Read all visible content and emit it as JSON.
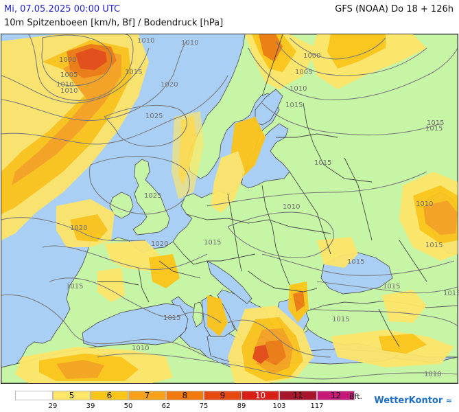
{
  "header": {
    "date": "Mi, 07.05.2025 00:00 UTC",
    "model": "GFS (NOAA) Do 18 + 126h",
    "subtitle": "10m Spitzenboeen [km/h, Bf] / Bodendruck [hPa]"
  },
  "colors": {
    "sea": "#a9cff5",
    "land": "#c6f5a6",
    "bft5": "#fde56a",
    "bft6": "#fdc419",
    "bft7": "#f6a11e",
    "bft8": "#ee7a10",
    "bft9": "#e64a12",
    "bft10": "#d92017",
    "bft11": "#a8162d",
    "bft12": "#c61a7a"
  },
  "isobar_labels": [
    "1010",
    "1010",
    "1000",
    "1000",
    "1005",
    "1005",
    "1010",
    "1015",
    "1020",
    "1010",
    "1025",
    "1015",
    "1015",
    "1025",
    "1020",
    "1020",
    "1010",
    "1015",
    "1015",
    "1015",
    "1015",
    "1015",
    "1010",
    "1015",
    "1010",
    "1015",
    "1010",
    "1015",
    "1015",
    "1010",
    "1015"
  ],
  "legend": {
    "swatches": [
      {
        "label": "",
        "color": "#ffffff"
      },
      {
        "label": "5",
        "color": "#fde56a"
      },
      {
        "label": "6",
        "color": "#fdc419"
      },
      {
        "label": "7",
        "color": "#f6a11e"
      },
      {
        "label": "8",
        "color": "#ee7a10"
      },
      {
        "label": "9",
        "color": "#e64a12"
      },
      {
        "label": "10",
        "color": "#d92017"
      },
      {
        "label": "11",
        "color": "#a8162d"
      },
      {
        "label": "12",
        "color": "#c61a7a"
      }
    ],
    "unit": "Bft.",
    "ticks": [
      "29",
      "39",
      "50",
      "62",
      "75",
      "89",
      "103",
      "117"
    ]
  },
  "logo": {
    "text": "WetterKontor",
    "icon": "wind-icon"
  }
}
